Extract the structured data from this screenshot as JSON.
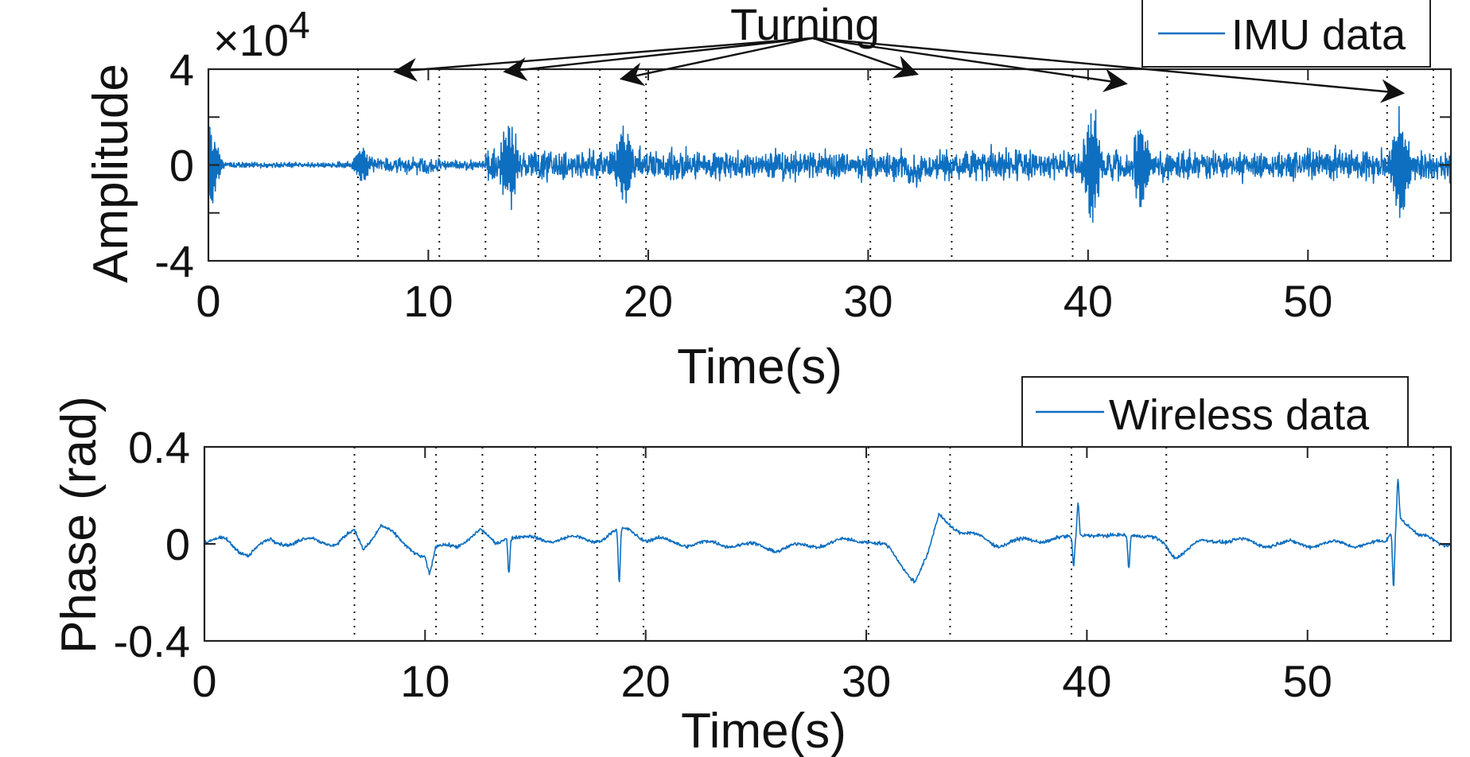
{
  "series_color": "#0e6fc0",
  "chart_data": [
    {
      "type": "line",
      "id": "imu",
      "exponent": {
        "base": "×10",
        "power": "4"
      },
      "xlabel": "Time(s)",
      "ylabel": "Amplitude",
      "xlim": [
        0,
        56.5
      ],
      "ylim": [
        -4,
        4
      ],
      "xticks": [
        0,
        10,
        20,
        30,
        40,
        50
      ],
      "xtick_labels": [
        "0",
        "10",
        "20",
        "30",
        "40",
        "50"
      ],
      "yticks": [
        -4,
        0,
        4
      ],
      "ytick_labels": [
        "-4",
        "0",
        "4"
      ],
      "minor_yticks": [
        -2,
        2
      ],
      "legend": {
        "label": "IMU data",
        "placement": "top-right"
      },
      "series": [
        {
          "name": "IMU data",
          "noise_segments": [
            {
              "t0": 0,
              "t1": 0.3,
              "amp": 1.5
            },
            {
              "t0": 0.3,
              "t1": 6.8,
              "amp": 0.12
            },
            {
              "t0": 6.8,
              "t1": 10.5,
              "amp": 0.35
            },
            {
              "t0": 10.5,
              "t1": 12.6,
              "amp": 0.18
            },
            {
              "t0": 12.6,
              "t1": 56.5,
              "amp": 0.62
            }
          ],
          "bursts": [
            {
              "t": 0.15,
              "amp": 1.8
            },
            {
              "t": 7.0,
              "amp": 0.9
            },
            {
              "t": 13.7,
              "amp": 2.0
            },
            {
              "t": 18.9,
              "amp": 1.9
            },
            {
              "t": 40.2,
              "amp": 2.6
            },
            {
              "t": 42.4,
              "amp": 1.8
            },
            {
              "t": 54.2,
              "amp": 2.5
            }
          ]
        }
      ]
    },
    {
      "type": "line",
      "id": "wireless",
      "xlabel": "Time(s)",
      "ylabel": "Phase (rad)",
      "xlim": [
        0,
        56.5
      ],
      "ylim": [
        -0.4,
        0.4
      ],
      "xticks": [
        0,
        10,
        20,
        30,
        40,
        50
      ],
      "xtick_labels": [
        "0",
        "10",
        "20",
        "30",
        "40",
        "50"
      ],
      "yticks": [
        -0.4,
        0,
        0.4
      ],
      "ytick_labels": [
        "-0.4",
        "0",
        "0.4"
      ],
      "legend": {
        "label": "Wireless data",
        "placement": "top-right"
      },
      "series": [
        {
          "name": "Wireless data",
          "baseline": [
            [
              0,
              0.0
            ],
            [
              1,
              0.02
            ],
            [
              2,
              -0.05
            ],
            [
              3,
              0.02
            ],
            [
              4,
              0.0
            ],
            [
              5,
              0.02
            ],
            [
              6,
              0.0
            ],
            [
              6.8,
              0.05
            ],
            [
              7.2,
              -0.02
            ],
            [
              8,
              0.08
            ],
            [
              9,
              0.0
            ],
            [
              10,
              -0.05
            ],
            [
              10.2,
              -0.13
            ],
            [
              10.5,
              -0.02
            ],
            [
              11.5,
              0.0
            ],
            [
              12.5,
              0.05
            ],
            [
              13.2,
              0.0
            ],
            [
              13.7,
              0.04
            ],
            [
              14.5,
              0.02
            ],
            [
              16,
              0.02
            ],
            [
              18,
              0.02
            ],
            [
              18.7,
              0.05
            ],
            [
              19.3,
              0.06
            ],
            [
              20,
              0.02
            ],
            [
              22,
              0.0
            ],
            [
              24,
              0.0
            ],
            [
              26,
              -0.02
            ],
            [
              28,
              0.0
            ],
            [
              30,
              0.02
            ],
            [
              31,
              -0.02
            ],
            [
              32.2,
              -0.15
            ],
            [
              32.8,
              -0.05
            ],
            [
              33.3,
              0.12
            ],
            [
              34.3,
              0.05
            ],
            [
              36,
              0.0
            ],
            [
              38,
              0.02
            ],
            [
              39.3,
              0.02
            ],
            [
              40,
              0.05
            ],
            [
              41,
              0.02
            ],
            [
              42,
              0.05
            ],
            [
              43.5,
              0.0
            ],
            [
              44,
              -0.05
            ],
            [
              45,
              0.0
            ],
            [
              46,
              0.02
            ],
            [
              48,
              0.0
            ],
            [
              50,
              0.0
            ],
            [
              52,
              0.0
            ],
            [
              53.5,
              0.0
            ],
            [
              54.2,
              0.12
            ],
            [
              55,
              0.03
            ],
            [
              56.5,
              0.0
            ]
          ],
          "spikes": [
            {
              "t": 13.8,
              "v": -0.15
            },
            {
              "t": 18.8,
              "v": -0.22
            },
            {
              "t": 39.4,
              "v": -0.12
            },
            {
              "t": 39.6,
              "v": 0.14
            },
            {
              "t": 41.9,
              "v": -0.14
            },
            {
              "t": 53.9,
              "v": -0.24
            },
            {
              "t": 54.1,
              "v": 0.17
            }
          ],
          "noise_amp": 0.012
        }
      ]
    }
  ],
  "event_markers_s": [
    6.8,
    10.5,
    12.6,
    15.0,
    17.8,
    19.9,
    30.1,
    33.8,
    39.3,
    43.6,
    53.6,
    55.7
  ],
  "annotation": {
    "label": "Turning",
    "origin": {
      "t": 27.5,
      "amp": 5.3
    },
    "targets": [
      {
        "t": 8.5,
        "amp": 3.9
      },
      {
        "t": 13.5,
        "amp": 3.9
      },
      {
        "t": 18.8,
        "amp": 3.6
      },
      {
        "t": 32.2,
        "amp": 3.8
      },
      {
        "t": 41.7,
        "amp": 3.4
      },
      {
        "t": 54.3,
        "amp": 3.0
      }
    ]
  }
}
